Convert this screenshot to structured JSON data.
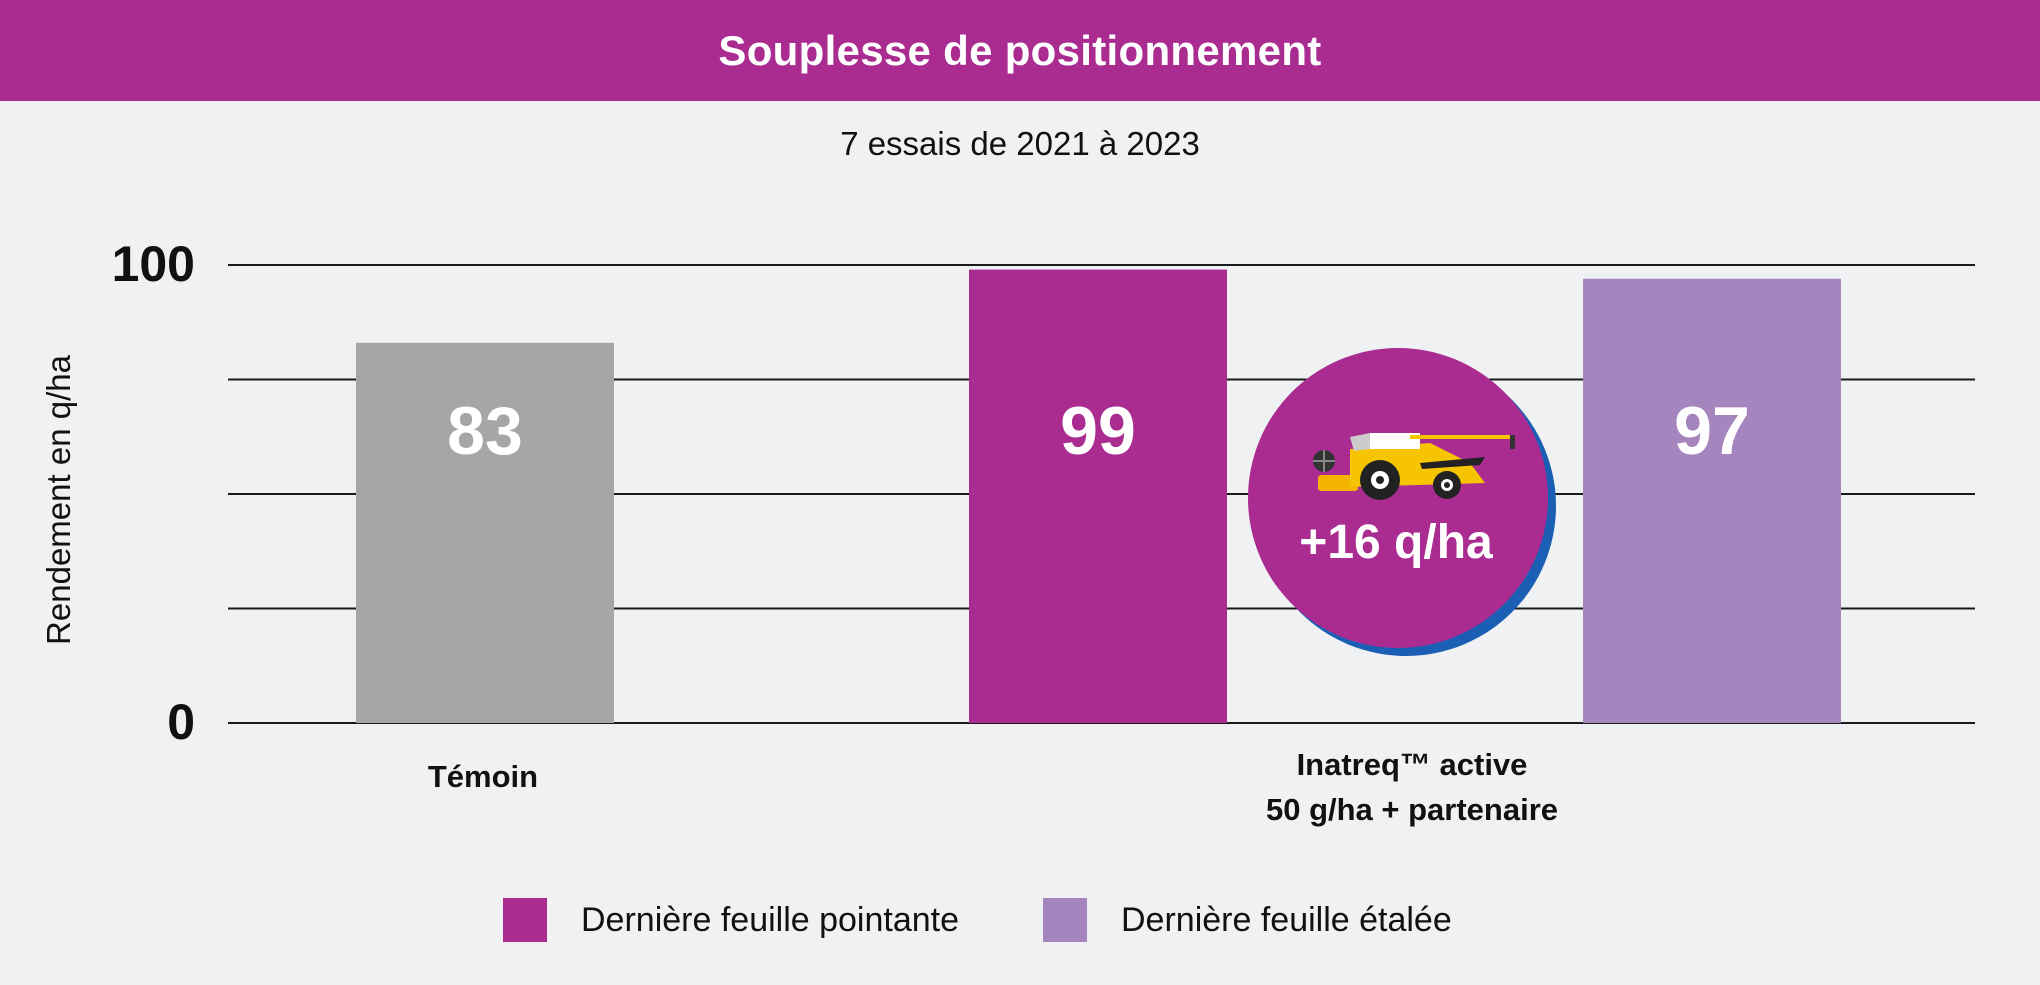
{
  "header": {
    "title": "Souplesse de positionnement"
  },
  "subtitle": "7 essais de 2021 à 2023",
  "colors": {
    "banner": "#aa2c91",
    "temoin": "#a6a6a6",
    "pointante": "#aa2c91",
    "etalee": "#a585bd",
    "badge": "#aa2c91",
    "badge_shadow": "#1a5fb4"
  },
  "chart_data": {
    "type": "bar",
    "title": "Souplesse de positionnement",
    "subtitle": "7 essais de 2021 à 2023",
    "ylabel": "Rendement en q/ha",
    "ylim": [
      0,
      100
    ],
    "y_tick_labels": [
      "0",
      "100"
    ],
    "grid": true,
    "groups": [
      {
        "label": "Témoin",
        "label_lines": [
          "Témoin"
        ]
      },
      {
        "label": "Inatreq™ active 50 g/ha + partenaire",
        "label_lines": [
          "Inatreq™ active",
          "50 g/ha + partenaire"
        ]
      }
    ],
    "bars": [
      {
        "group": 0,
        "series": "temoin",
        "value": 83,
        "label": "83",
        "color": "#a6a6a6"
      },
      {
        "group": 1,
        "series": "Dernière feuille pointante",
        "value": 99,
        "label": "99",
        "color": "#aa2c91"
      },
      {
        "group": 1,
        "series": "Dernière feuille étalée",
        "value": 97,
        "label": "97",
        "color": "#a585bd"
      }
    ],
    "annotation": {
      "text": "+16 q/ha",
      "icon": "combine-harvester-icon"
    },
    "legend": {
      "position": "bottom",
      "entries": [
        {
          "name": "Dernière feuille pointante",
          "color": "#aa2c91"
        },
        {
          "name": "Dernière feuille étalée",
          "color": "#a585bd"
        }
      ]
    }
  }
}
